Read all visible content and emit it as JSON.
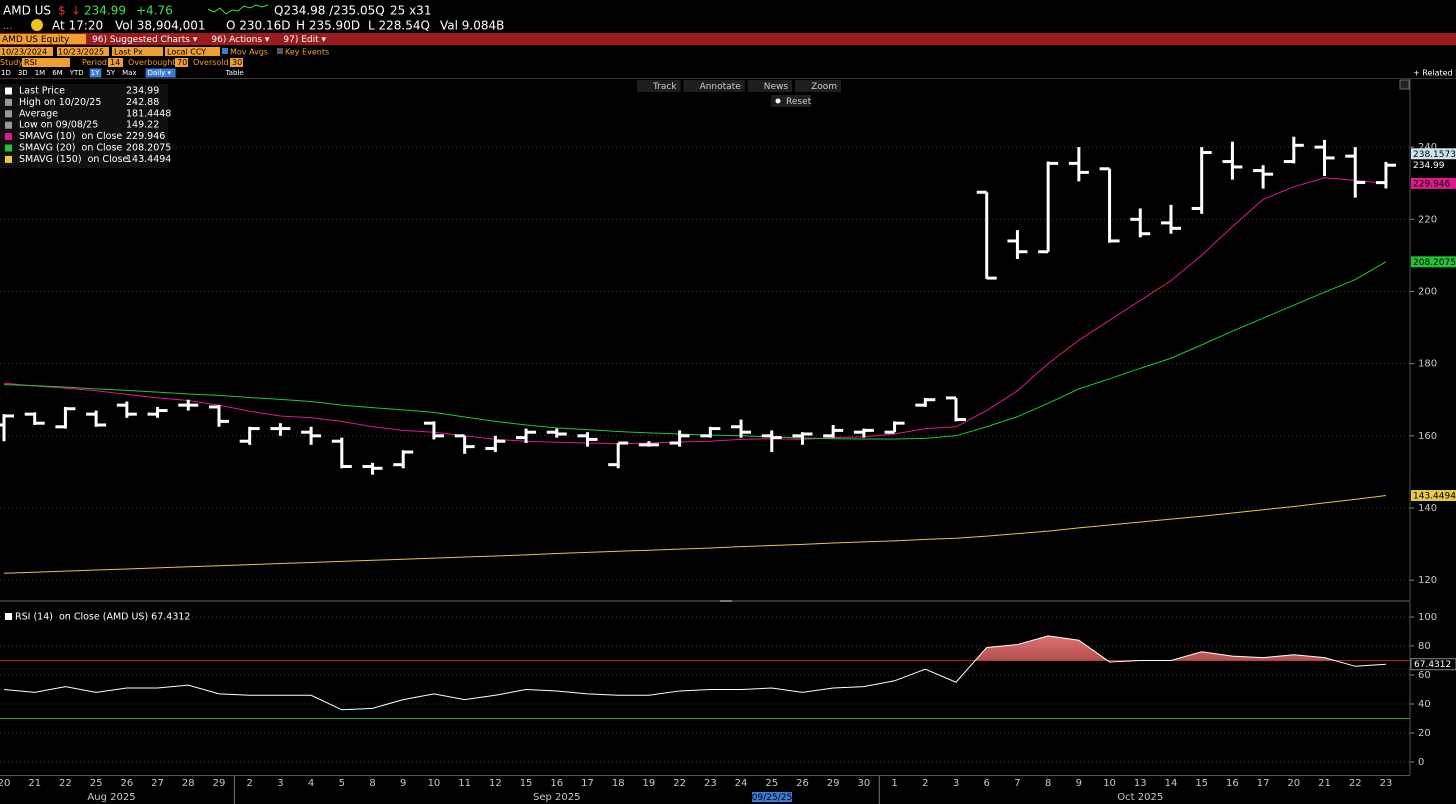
{
  "header": {
    "ticker": "AMD US",
    "currency": "$",
    "direction": "↓",
    "price": 234.99,
    "change": "+4.76",
    "quote": "Q234.98 /235.05Q",
    "size": "25 x31",
    "time": "At 17:20",
    "volume": "Vol 38,904,001",
    "open": "O 230.16D",
    "high": "H 235.90D",
    "low": "L 228.54Q",
    "value": "Val 9.084B"
  },
  "menu": {
    "security": "AMD US Equity",
    "items": [
      "96) Suggested Charts ▾",
      "96) Actions ▾",
      "97) Edit ▾"
    ]
  },
  "settings": {
    "start": "10/23/2024",
    "end": "10/23/2025",
    "field": "Last Px",
    "currency": "Local CCY",
    "options": [
      "Mov Avgs",
      "Key Events"
    ]
  },
  "study": {
    "label": "Study",
    "name": "RSI",
    "period_label": "Period",
    "period": 14,
    "overbought_label": "Overbought",
    "overbought": 70,
    "oversold_label": "Oversold",
    "oversold": 30
  },
  "ranges": [
    "1D",
    "3D",
    "1M",
    "6M",
    "YTD",
    "1Y",
    "5Y",
    "Max"
  ],
  "selected_range": 5,
  "frequency": "Daily ▾",
  "table": "Table",
  "tools": [
    "Track",
    "Annotate",
    "News",
    "Zoom"
  ],
  "reset": "Reset",
  "related": "+ Related Da",
  "chart_data": [
    {
      "type": "ohlc",
      "categories": [
        "20",
        "21",
        "22",
        "25",
        "26",
        "27",
        "28",
        "29",
        "2",
        "3",
        "4",
        "5",
        "8",
        "9",
        "10",
        "11",
        "12",
        "15",
        "16",
        "17",
        "18",
        "19",
        "22",
        "23",
        "24",
        "25",
        "26",
        "29",
        "30",
        "1",
        "2",
        "3",
        "6",
        "7",
        "8",
        "9",
        "10",
        "13",
        "14",
        "15",
        "16",
        "17",
        "20",
        "21",
        "22",
        "23"
      ],
      "months": [
        "Aug 2025",
        "Sep 2025",
        "Oct 2025"
      ],
      "cursor_label": "09/25/25",
      "close_name": "Last Price",
      "open": [
        163,
        166,
        162.5,
        166,
        168.5,
        166,
        168.5,
        168,
        158.5,
        162,
        161,
        158.5,
        151.5,
        152,
        163.5,
        160,
        156.5,
        159.5,
        161,
        160,
        152,
        157.5,
        158,
        160,
        162.5,
        160,
        160,
        160,
        161,
        161,
        168.5,
        170.5,
        227.5,
        214,
        211,
        235.5,
        234,
        220,
        219,
        223,
        236,
        233.5,
        236,
        240,
        237.5,
        230.16
      ],
      "high": [
        166,
        166.5,
        168,
        167,
        169.5,
        168,
        170,
        168.5,
        162.5,
        163.5,
        162.5,
        159.5,
        152.5,
        156,
        164,
        160,
        160,
        162,
        162,
        161,
        158,
        158.5,
        161.5,
        162.5,
        164.5,
        161.5,
        161,
        163,
        162,
        164,
        170.5,
        170.5,
        227.5,
        217,
        236,
        240,
        234,
        223,
        224,
        240,
        241.5,
        235,
        242.88,
        242,
        240,
        235.9
      ],
      "low": [
        158.5,
        163,
        162,
        162.5,
        165,
        165,
        167,
        162.5,
        157.5,
        160,
        157.5,
        151,
        149.22,
        151,
        159,
        155,
        155.5,
        158,
        159.5,
        157,
        151,
        157,
        157,
        159.5,
        159.5,
        155.5,
        157.5,
        159.5,
        159.5,
        161,
        168,
        164,
        203.5,
        209,
        211,
        230.5,
        213.5,
        215,
        216,
        221.5,
        231,
        228.5,
        235.5,
        232,
        226,
        228.54
      ],
      "close": [
        165.5,
        163.5,
        167.5,
        163,
        166,
        167,
        168.5,
        164,
        162,
        162,
        160,
        151.5,
        151,
        155.5,
        160,
        157,
        158.5,
        161,
        160.5,
        159,
        158,
        157.5,
        160,
        162,
        161,
        159.5,
        160.5,
        161.5,
        161.5,
        163.5,
        170,
        164.5,
        203.7,
        211,
        235.5,
        233,
        214,
        216,
        217.5,
        238.5,
        234.5,
        232.5,
        240.5,
        237,
        230.2,
        234.99
      ],
      "ohlc_color": "#ffffff",
      "series": [
        {
          "name": "SMAVG (10)  on Close",
          "color": "#e0198e",
          "values": [
            174.6,
            173.8,
            173.2,
            172.5,
            171.5,
            170.5,
            169.8,
            168.5,
            166.8,
            165.5,
            165,
            164,
            162.5,
            161.5,
            161,
            160,
            159,
            158.5,
            158.2,
            158,
            157.8,
            158,
            158.3,
            158.5,
            159,
            159.2,
            159,
            159.5,
            159.7,
            160.5,
            162,
            162.5,
            167,
            172.5,
            180,
            186.5,
            192,
            197.5,
            203,
            210,
            218,
            225.5,
            229,
            231.5,
            230.8,
            229.946
          ]
        },
        {
          "name": "SMAVG (20)  on Close",
          "color": "#23c43b",
          "values": [
            174.2,
            173.9,
            173.5,
            173,
            172.6,
            172.1,
            171.6,
            171.2,
            170.6,
            170.1,
            169.5,
            168.5,
            167.8,
            167.2,
            166.5,
            165.2,
            164,
            163,
            162.2,
            161.7,
            161.2,
            160.8,
            160.5,
            160.2,
            160,
            159.7,
            159.4,
            159.2,
            159.1,
            159.1,
            159.3,
            160,
            162.5,
            165.3,
            169,
            173,
            175.8,
            178.7,
            181.5,
            185.2,
            189,
            192.6,
            196.2,
            199.8,
            203.3,
            208.2075
          ]
        },
        {
          "name": "SMAVG (150)  on Close",
          "color": "#e6c84a",
          "values": [
            121.9,
            122.2,
            122.5,
            122.8,
            123.1,
            123.4,
            123.7,
            124,
            124.3,
            124.6,
            124.9,
            125.2,
            125.5,
            125.8,
            126.1,
            126.4,
            126.7,
            127,
            127.4,
            127.7,
            128,
            128.3,
            128.6,
            128.9,
            129.3,
            129.6,
            129.9,
            130.3,
            130.6,
            130.9,
            131.3,
            131.6,
            132.2,
            132.9,
            133.6,
            134.5,
            135.3,
            136.1,
            136.9,
            137.7,
            138.6,
            139.5,
            140.4,
            141.4,
            142.4,
            143.4494
          ]
        }
      ],
      "legend": [
        {
          "label": "High on 10/20/25",
          "value": 242.88
        },
        {
          "label": "Average",
          "value": 181.4448
        },
        {
          "label": "Low on 09/08/25",
          "value": 149.22
        }
      ],
      "marker_value": 238.1573,
      "ylim": [
        114.5,
        258.6
      ],
      "yticks": [
        120,
        140,
        160,
        180,
        200,
        220,
        240
      ],
      "grid": true
    },
    {
      "type": "line",
      "name": "RSI (14)  on Close (AMD US)",
      "color": "#ffffff",
      "values": [
        50,
        48,
        52,
        48,
        51,
        51,
        53,
        47,
        46,
        46,
        46,
        36,
        37,
        43,
        47,
        43,
        46,
        50,
        49,
        47,
        46,
        46,
        49,
        50,
        50,
        51,
        48,
        51,
        52,
        56,
        64,
        55,
        79,
        81,
        87,
        84,
        69,
        70,
        70,
        76,
        73,
        72,
        74,
        72,
        66,
        67.4312
      ],
      "ylim": [
        -9,
        108.3
      ],
      "yticks": [
        0,
        20,
        40,
        60,
        80,
        100
      ],
      "grid": true
    }
  ]
}
